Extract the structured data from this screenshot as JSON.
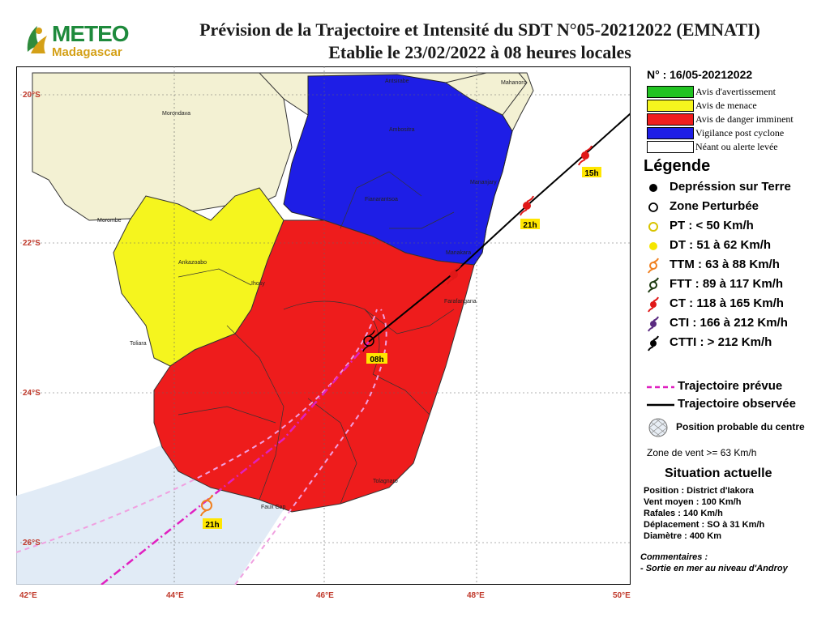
{
  "header": {
    "title_line1": "Prévision de la Trajectoire et Intensité du SDT N°05-20212022 (EMNATI)",
    "title_line2": "Etablie le 23/02/2022 à 08 heures locales",
    "logo_main": "METEO",
    "logo_sub": "Madagascar"
  },
  "bulletin_number": "N° : 16/05-20212022",
  "alerts": [
    {
      "label": "Avis d'avertissement",
      "color": "#22c322"
    },
    {
      "label": "Avis de menace",
      "color": "#f5f51e"
    },
    {
      "label": "Avis de danger imminent",
      "color": "#f01e1e"
    },
    {
      "label": "Vigilance post cyclone",
      "color": "#1e1ee6"
    },
    {
      "label": "Néant ou alerte levée",
      "color": "#ffffff"
    }
  ],
  "legend": {
    "title": "Légende",
    "items": [
      {
        "label": "Depréssion sur Terre",
        "icon": "filled-black-dot"
      },
      {
        "label": "Zone Perturbée",
        "icon": "hollow-circle"
      },
      {
        "label": "PT : < 50 Km/h",
        "icon": "hollow-yellow-circle"
      },
      {
        "label": "DT : 51 à 62 Km/h",
        "icon": "filled-yellow-dot"
      },
      {
        "label": "TTM : 63 à 88 Km/h",
        "icon": "orange-cyclone-symbol"
      },
      {
        "label": "FTT : 89 à 117 Km/h",
        "icon": "dark-green-cyclone-symbol"
      },
      {
        "label": "CT : 118 à 165 Km/h",
        "icon": "red-cyclone-symbol"
      },
      {
        "label": "CTI : 166 à 212 Km/h",
        "icon": "purple-cyclone-symbol"
      },
      {
        "label": "CTTI : > 212 Km/h",
        "icon": "black-cyclone-symbol"
      }
    ],
    "predicted_track": "Trajectoire prévue",
    "observed_track": "Trajectoire observée",
    "probable_position": "Position probable du centre",
    "wind_zone": "Zone de vent >= 63 Km/h"
  },
  "situation": {
    "title": "Situation actuelle",
    "position": "Position : District d'Iakora",
    "mean_wind": "Vent moyen : 100 Km/h",
    "gusts": "Rafales : 140 Km/h",
    "movement": "Déplacement : SO à 31 Km/h",
    "diameter": "Diamètre : 400 Km"
  },
  "comments": {
    "title": "Commentaires :",
    "text": "- Sortie en mer au niveau d'Androy"
  },
  "map": {
    "lon_ticks": [
      "42°E",
      "44°E",
      "46°E",
      "48°E",
      "50°E"
    ],
    "lat_ticks": [
      "20°S",
      "22°S",
      "24°S",
      "26°S"
    ],
    "cities": [
      "Antsirabe",
      "Mahanoro",
      "Morondava",
      "Ambositra",
      "Mananjary",
      "Fianarantsoa",
      "Morombe",
      "Ankazoabo",
      "Ihosy",
      "Manakara",
      "Farafangana",
      "Toliara",
      "Tolagnaro",
      "Faux Cap"
    ],
    "time_labels": [
      "15h",
      "21h",
      "08h",
      "21h"
    ],
    "colors": {
      "sea": "#ffffff",
      "land_none": "#f3f1d3",
      "yellow_zone": "#f5f51e",
      "red_zone": "#ee1c1c",
      "blue_zone": "#1e1ee6",
      "wind_zone": "#dce8f5",
      "predicted": "#e020c0",
      "observed": "#000000"
    }
  }
}
